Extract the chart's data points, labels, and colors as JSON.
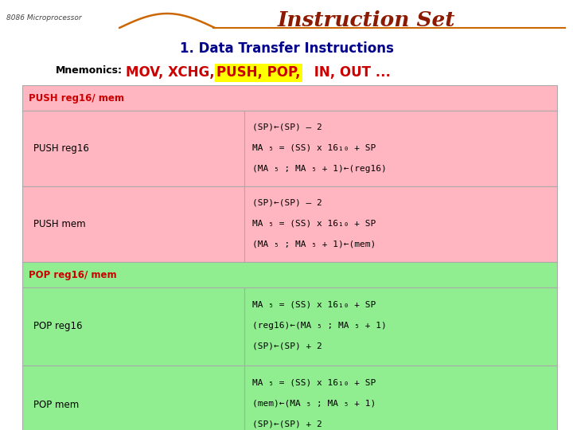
{
  "title": "Instruction Set",
  "subtitle": "1. Data Transfer Instructions",
  "subtitle_color": "#00008B",
  "title_color": "#8B1A00",
  "bg_color": "#FFFFFF",
  "top_label": "8086 Microprocessor",
  "mnemonics_label": "Mnemonics:",
  "mnemonics_text_normal": "MOV, XCHG, ",
  "mnemonics_text_highlight": "PUSH, POP,",
  "mnemonics_text_after": " IN, OUT ...",
  "highlight_color": "#FFFF00",
  "mnemonic_text_color": "#CC0000",
  "push_section_color": "#FFB6C1",
  "pop_section_color": "#90EE90",
  "push_header": "PUSH reg16/ mem",
  "pop_header": "POP reg16/ mem",
  "push_header_color": "#CC0000",
  "pop_header_color": "#CC0000",
  "table_border_color": "#CCCCCC",
  "curve_color": "#CC6600",
  "rows": [
    {
      "section": "push",
      "label": "PUSH reg16",
      "lines": [
        "(SP)←(SP) – 2",
        "MA ₅ = (SS) x 16₁₀ + SP",
        "(MA ₅ ; MA ₅ + 1)←(reg16)"
      ]
    },
    {
      "section": "push",
      "label": "PUSH mem",
      "lines": [
        "(SP)←(SP) – 2",
        "MA ₅ = (SS) x 16₁₀ + SP",
        "(MA ₅ ; MA ₅ + 1)←(mem)"
      ]
    },
    {
      "section": "pop",
      "label": "POP reg16",
      "lines": [
        "MA ₅ = (SS) x 16₁₀ + SP",
        "(reg16)←(MA ₅ ; MA ₅ + 1)",
        "(SP)←(SP) + 2"
      ]
    },
    {
      "section": "pop",
      "label": "POP mem",
      "lines": [
        "MA ₅ = (SS) x 16₁₀ + SP",
        "(mem)←(MA ₅ ; MA ₅ + 1)",
        "(SP)←(SP) + 2"
      ]
    }
  ]
}
